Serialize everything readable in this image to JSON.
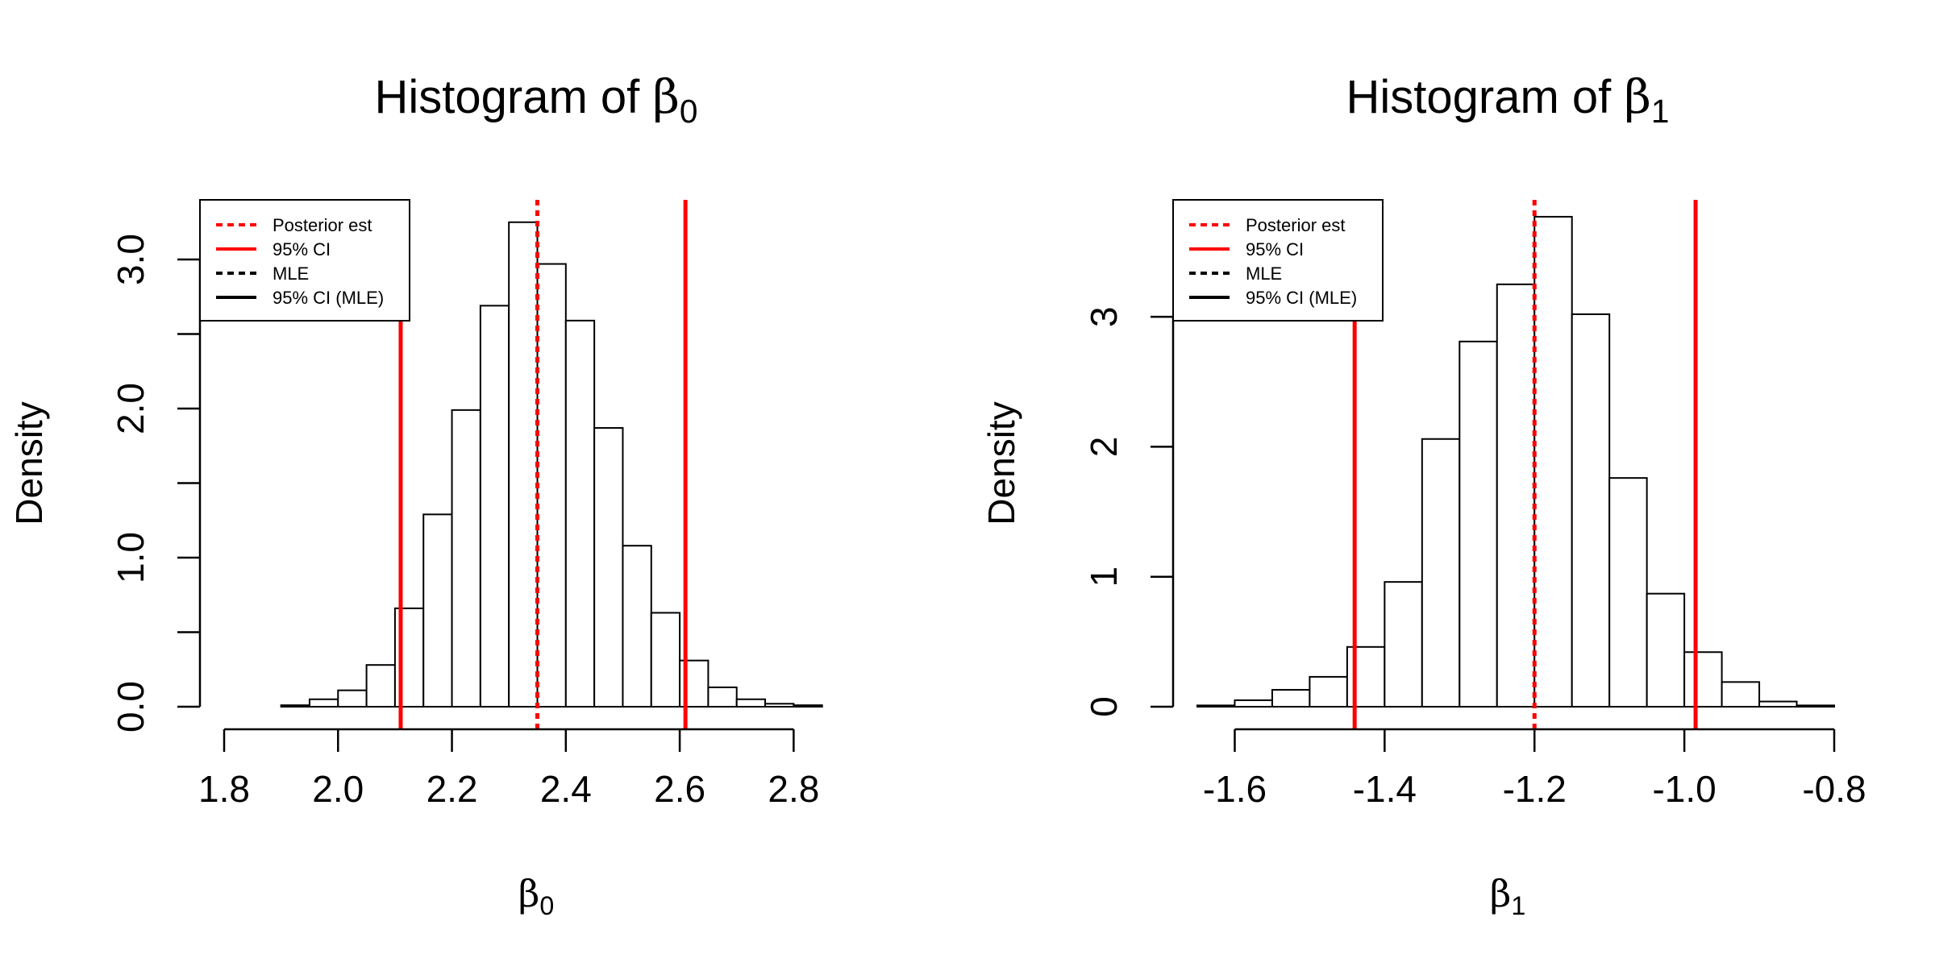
{
  "chart_data": [
    {
      "type": "bar",
      "title": {
        "prefix": "Histogram of ",
        "symbol": "β",
        "subscript": "0"
      },
      "xlabel": {
        "symbol": "β",
        "subscript": "0"
      },
      "ylabel": "Density",
      "xlim": [
        1.8,
        2.9
      ],
      "ylim": [
        0,
        3.4
      ],
      "x_ticks": [
        1.8,
        2.0,
        2.2,
        2.4,
        2.6,
        2.8
      ],
      "x_tick_labels": [
        "1.8",
        "2.0",
        "2.2",
        "2.4",
        "2.6",
        "2.8"
      ],
      "y_ticks": [
        0,
        0.5,
        1.0,
        1.5,
        2.0,
        2.5,
        3.0
      ],
      "y_tick_labels": [
        "0.0",
        "",
        "1.0",
        "",
        "2.0",
        "",
        "3.0"
      ],
      "bin_edges": [
        1.8,
        1.85,
        1.9,
        1.95,
        2.0,
        2.05,
        2.1,
        2.15,
        2.2,
        2.25,
        2.3,
        2.35,
        2.4,
        2.45,
        2.5,
        2.55,
        2.6,
        2.65,
        2.7,
        2.75,
        2.8,
        2.85,
        2.9
      ],
      "values": [
        0.0,
        0.0,
        0.01,
        0.05,
        0.11,
        0.28,
        0.66,
        1.29,
        1.99,
        2.69,
        3.25,
        2.97,
        2.59,
        1.87,
        1.08,
        0.63,
        0.31,
        0.13,
        0.05,
        0.02,
        0.01,
        0.0
      ],
      "vlines": [
        {
          "name": "Posterior est",
          "x": 2.35,
          "color": "#ff0000",
          "style": "dotted"
        },
        {
          "name": "95% CI",
          "x": 2.11,
          "color": "#ff0000",
          "style": "solid"
        },
        {
          "name": "95% CI",
          "x": 2.61,
          "color": "#ff0000",
          "style": "solid"
        }
      ],
      "legend": {
        "position": "top-left",
        "entries": [
          {
            "label": "Posterior est",
            "color": "#ff0000",
            "style": "dotted"
          },
          {
            "label": "95% CI",
            "color": "#ff0000",
            "style": "solid"
          },
          {
            "label": "MLE",
            "color": "#000000",
            "style": "dotted"
          },
          {
            "label": "95% CI (MLE)",
            "color": "#000000",
            "style": "solid"
          }
        ]
      },
      "grid": false
    },
    {
      "type": "bar",
      "title": {
        "prefix": "Histogram of ",
        "symbol": "β",
        "subscript": "1"
      },
      "xlabel": {
        "symbol": "β",
        "subscript": "1"
      },
      "ylabel": "Density",
      "xlim": [
        -1.65,
        -0.8
      ],
      "ylim": [
        0,
        3.9
      ],
      "x_ticks": [
        -1.6,
        -1.4,
        -1.2,
        -1.0,
        -0.8
      ],
      "x_tick_labels": [
        "-1.6",
        "-1.4",
        "-1.2",
        "-1.0",
        "-0.8"
      ],
      "y_ticks": [
        0,
        1,
        2,
        3
      ],
      "y_tick_labels": [
        "0",
        "1",
        "2",
        "3"
      ],
      "bin_edges": [
        -1.65,
        -1.6,
        -1.55,
        -1.5,
        -1.45,
        -1.4,
        -1.35,
        -1.3,
        -1.25,
        -1.2,
        -1.15,
        -1.1,
        -1.05,
        -1.0,
        -0.95,
        -0.9,
        -0.85,
        -0.8
      ],
      "values": [
        0.01,
        0.05,
        0.13,
        0.23,
        0.46,
        0.96,
        2.06,
        2.81,
        3.25,
        3.77,
        3.02,
        1.76,
        0.87,
        0.42,
        0.19,
        0.04,
        0.01
      ],
      "vlines": [
        {
          "name": "Posterior est",
          "x": -1.2,
          "color": "#ff0000",
          "style": "dotted"
        },
        {
          "name": "95% CI",
          "x": -1.44,
          "color": "#ff0000",
          "style": "solid"
        },
        {
          "name": "95% CI",
          "x": -0.985,
          "color": "#ff0000",
          "style": "solid"
        }
      ],
      "legend": {
        "position": "top-left",
        "entries": [
          {
            "label": "Posterior est",
            "color": "#ff0000",
            "style": "dotted"
          },
          {
            "label": "95% CI",
            "color": "#ff0000",
            "style": "solid"
          },
          {
            "label": "MLE",
            "color": "#000000",
            "style": "dotted"
          },
          {
            "label": "95% CI (MLE)",
            "color": "#000000",
            "style": "solid"
          }
        ]
      },
      "grid": false
    }
  ]
}
